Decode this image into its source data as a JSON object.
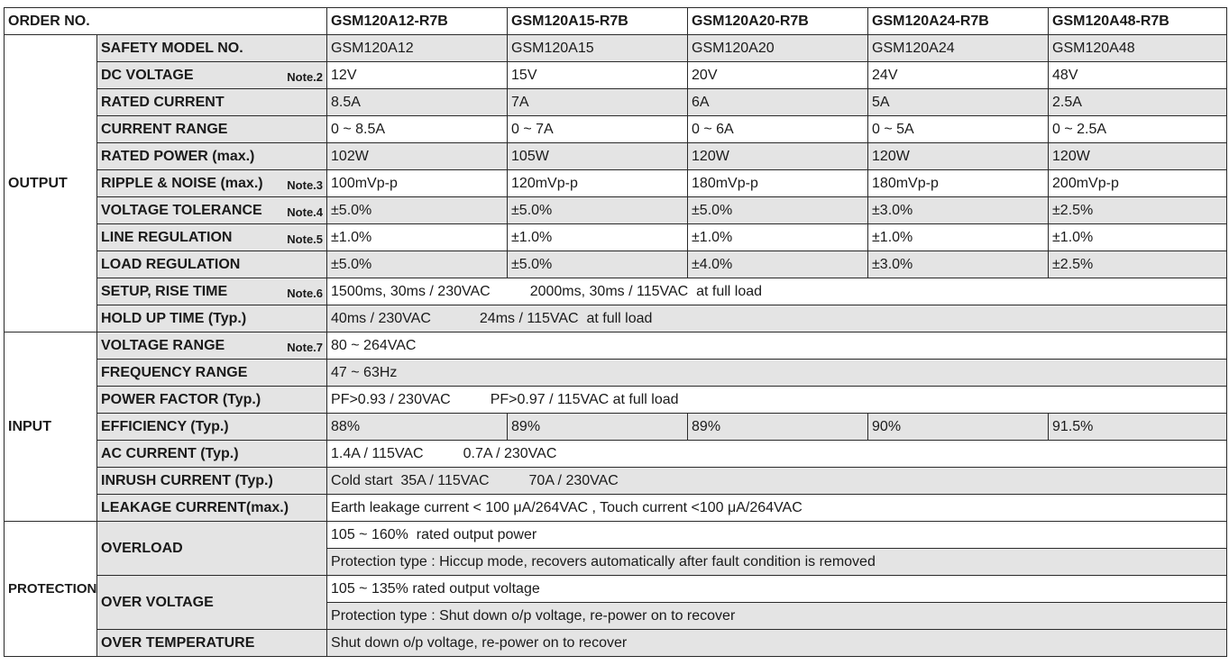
{
  "header": {
    "order_no": "ORDER NO.",
    "models": [
      "GSM120A12-R7B",
      "GSM120A15-R7B",
      "GSM120A20-R7B",
      "GSM120A24-R7B",
      "GSM120A48-R7B"
    ]
  },
  "groups": {
    "output": "OUTPUT",
    "input": "INPUT",
    "protection": "PROTECTION"
  },
  "output": {
    "safety_model": {
      "label": "SAFETY MODEL NO.",
      "values": [
        "GSM120A12",
        "GSM120A15",
        "GSM120A20",
        "GSM120A24",
        "GSM120A48"
      ]
    },
    "dc_voltage": {
      "label": "DC VOLTAGE",
      "note": "Note.2",
      "values": [
        "12V",
        "15V",
        "20V",
        "24V",
        "48V"
      ]
    },
    "rated_current": {
      "label": "RATED CURRENT",
      "values": [
        "8.5A",
        "7A",
        "6A",
        "5A",
        "2.5A"
      ]
    },
    "current_range": {
      "label": "CURRENT RANGE",
      "values": [
        "0 ~ 8.5A",
        "0 ~ 7A",
        "0 ~ 6A",
        "0 ~ 5A",
        "0 ~ 2.5A"
      ]
    },
    "rated_power": {
      "label": "RATED POWER (max.)",
      "values": [
        "102W",
        "105W",
        "120W",
        "120W",
        "120W"
      ]
    },
    "ripple_noise": {
      "label": "RIPPLE & NOISE (max.)",
      "note": "Note.3",
      "values": [
        "100mVp-p",
        "120mVp-p",
        "180mVp-p",
        "180mVp-p",
        "200mVp-p"
      ]
    },
    "voltage_tolerance": {
      "label": "VOLTAGE TOLERANCE",
      "note": "Note.4",
      "values": [
        "±5.0%",
        "±5.0%",
        "±5.0%",
        "±3.0%",
        "±2.5%"
      ]
    },
    "line_regulation": {
      "label": "LINE REGULATION",
      "note": "Note.5",
      "values": [
        "±1.0%",
        "±1.0%",
        "±1.0%",
        "±1.0%",
        "±1.0%"
      ]
    },
    "load_regulation": {
      "label": "LOAD REGULATION",
      "values": [
        "±5.0%",
        "±5.0%",
        "±4.0%",
        "±3.0%",
        "±2.5%"
      ]
    },
    "setup_rise": {
      "label": "SETUP, RISE TIME",
      "note": "Note.6",
      "v1": "1500ms, 30ms / 230VAC",
      "v2": "2000ms, 30ms / 115VAC  at full load"
    },
    "hold_up": {
      "label": "HOLD UP TIME (Typ.)",
      "v1": "40ms / 230VAC",
      "v2": "24ms / 115VAC  at full load"
    }
  },
  "input": {
    "voltage_range": {
      "label": "VOLTAGE RANGE",
      "note": "Note.7",
      "value": "80 ~ 264VAC"
    },
    "frequency_range": {
      "label": "FREQUENCY RANGE",
      "value": "47 ~ 63Hz"
    },
    "power_factor": {
      "label": "POWER FACTOR (Typ.)",
      "v1": "PF>0.93 / 230VAC",
      "v2": "PF>0.97 / 115VAC at full load"
    },
    "efficiency": {
      "label": "EFFICIENCY (Typ.)",
      "values": [
        "88%",
        "89%",
        "89%",
        "90%",
        "91.5%"
      ]
    },
    "ac_current": {
      "label": "AC CURRENT (Typ.)",
      "v1": "1.4A / 115VAC",
      "v2": "0.7A / 230VAC"
    },
    "inrush_current": {
      "label": "INRUSH CURRENT (Typ.)",
      "v1": "Cold start  35A / 115VAC",
      "v2": "70A / 230VAC"
    },
    "leakage_current": {
      "label": "LEAKAGE CURRENT(max.)",
      "value": "Earth leakage current < 100 μA/264VAC , Touch current <100 μA/264VAC"
    }
  },
  "protection": {
    "overload": {
      "label": "OVERLOAD",
      "line1": "105 ~ 160%  rated output power",
      "line2": "Protection type : Hiccup mode, recovers automatically after fault condition is removed"
    },
    "over_voltage": {
      "label": "OVER VOLTAGE",
      "line1": "105 ~ 135% rated output voltage",
      "line2": "Protection type : Shut down o/p voltage, re-power on to recover"
    },
    "over_temperature": {
      "label": "OVER TEMPERATURE",
      "value": "Shut down o/p voltage, re-power on to recover"
    }
  }
}
